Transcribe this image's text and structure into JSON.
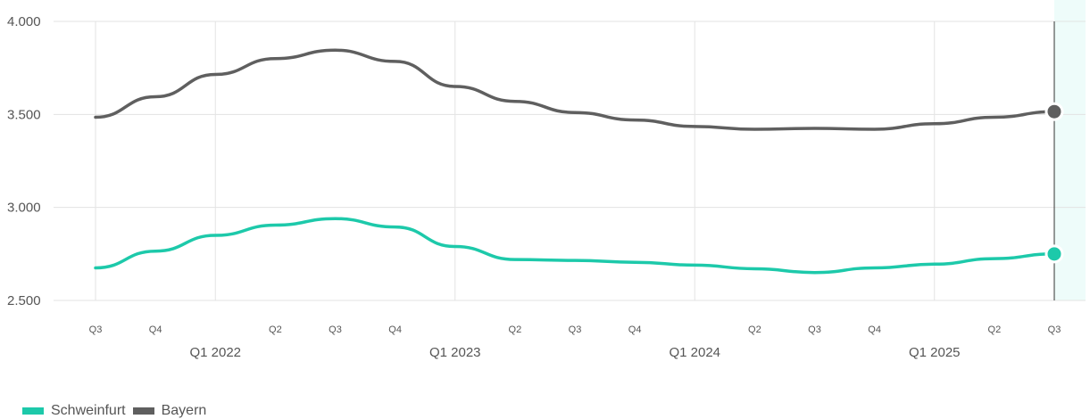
{
  "chart_data": {
    "type": "line",
    "x": [
      "Q3 2021",
      "Q4 2021",
      "Q1 2022",
      "Q2 2022",
      "Q3 2022",
      "Q4 2022",
      "Q1 2023",
      "Q2 2023",
      "Q3 2023",
      "Q4 2023",
      "Q1 2024",
      "Q2 2024",
      "Q3 2024",
      "Q4 2024",
      "Q1 2025",
      "Q2 2025",
      "Q3 2025"
    ],
    "tick_labels_minor": [
      "Q3",
      "Q4",
      "",
      "Q2",
      "Q3",
      "Q4",
      "",
      "Q2",
      "Q3",
      "Q4",
      "",
      "Q2",
      "Q3",
      "Q4",
      "",
      "Q2",
      "Q3"
    ],
    "tick_labels_major": [
      "",
      "",
      "Q1 2022",
      "",
      "",
      "",
      "Q1 2023",
      "",
      "",
      "",
      "Q1 2024",
      "",
      "",
      "",
      "Q1 2025",
      "",
      ""
    ],
    "y_ticks": [
      "2.500",
      "3.000",
      "3.500",
      "4.000"
    ],
    "y_tick_values": [
      2500,
      3000,
      3500,
      4000
    ],
    "ylim": [
      2500,
      4000
    ],
    "grid": true,
    "highlight_last_period": true,
    "series": [
      {
        "name": "Schweinfurt",
        "color": "#1dc9aa",
        "values": [
          2675,
          2765,
          2850,
          2905,
          2940,
          2895,
          2790,
          2720,
          2715,
          2705,
          2690,
          2670,
          2650,
          2675,
          2695,
          2725,
          2750
        ]
      },
      {
        "name": "Bayern",
        "color": "#5f5f5f",
        "values": [
          3485,
          3595,
          3715,
          3800,
          3845,
          3785,
          3650,
          3570,
          3510,
          3470,
          3435,
          3420,
          3425,
          3420,
          3450,
          3485,
          3515
        ]
      }
    ],
    "legend_position": "bottom-left"
  }
}
